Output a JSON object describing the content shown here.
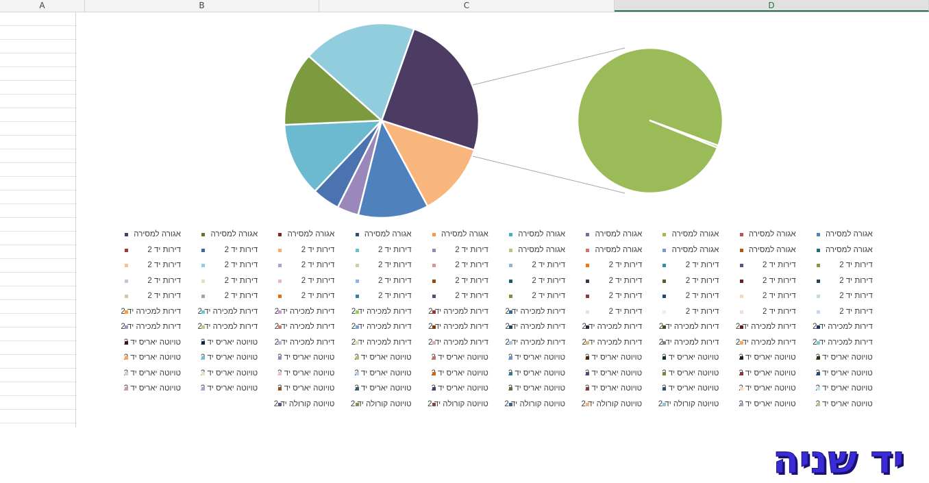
{
  "sheet": {
    "columns": [
      {
        "label": "A",
        "key": "a",
        "active": false
      },
      {
        "label": "B",
        "key": "b",
        "active": false
      },
      {
        "label": "C",
        "key": "c",
        "active": false
      },
      {
        "label": "D",
        "key": "d",
        "active": true
      }
    ]
  },
  "chart_data": {
    "type": "pie",
    "subtype": "pie-of-pie",
    "title": "",
    "main_pie": {
      "slices": [
        {
          "value": 24.0,
          "color": "#4c3b63"
        },
        {
          "value": 12.0,
          "color": "#f8b67c"
        },
        {
          "value": 11.5,
          "color": "#4f81bd"
        },
        {
          "value": 3.5,
          "color": "#9b88bb"
        },
        {
          "value": 4.5,
          "color": "#4a73b0"
        },
        {
          "value": 12.0,
          "color": "#6cbad0"
        },
        {
          "value": 12.0,
          "color": "#7b9b3e"
        },
        {
          "value": 18.5,
          "color": "#92cddd"
        }
      ]
    },
    "secondary_pie": {
      "slices": [
        {
          "value": 99.5,
          "color": "#9bbb59"
        },
        {
          "value": 0.5,
          "color": "#9bbb59"
        }
      ]
    },
    "legend": {
      "placement": "bottom",
      "columns": 10,
      "entries": [
        {
          "label": "אגורה למסירה",
          "color": "#4f81bd"
        },
        {
          "label": "אגורה למסירה",
          "color": "#c0504d"
        },
        {
          "label": "אגורה למסירה",
          "color": "#9bbb59"
        },
        {
          "label": "אגורה למסירה",
          "color": "#8064a2"
        },
        {
          "label": "אגורה למסירה",
          "color": "#4bacc6"
        },
        {
          "label": "אגורה למסירה",
          "color": "#f79646"
        },
        {
          "label": "אגורה למסירה",
          "color": "#2c4d75"
        },
        {
          "label": "אגורה למסירה",
          "color": "#772c2a"
        },
        {
          "label": "אגורה למסירה",
          "color": "#5f7530"
        },
        {
          "label": "אגורה למסירה",
          "color": "#4d3b62"
        },
        {
          "label": "אגורה למסירה",
          "color": "#276a7c"
        },
        {
          "label": "אגורה למסירה",
          "color": "#b65708"
        },
        {
          "label": "אגורה למסירה",
          "color": "#729aca"
        },
        {
          "label": "אגורה למסירה",
          "color": "#cd7371"
        },
        {
          "label": "אגורה למסירה",
          "color": "#afc97a"
        },
        {
          "label": "דירות יד 2",
          "color": "#9983b5"
        },
        {
          "label": "דירות יד 2",
          "color": "#6fbdd1"
        },
        {
          "label": "דירות יד 2",
          "color": "#f9ab6b"
        },
        {
          "label": "דירות יד 2",
          "color": "#3a679c"
        },
        {
          "label": "דירות יד 2",
          "color": "#9e3b38"
        },
        {
          "label": "דירות יד 2",
          "color": "#7e9c40"
        },
        {
          "label": "דירות יד 2",
          "color": "#664f82"
        },
        {
          "label": "דירות יד 2",
          "color": "#358ea6"
        },
        {
          "label": "דירות יד 2",
          "color": "#f3760d"
        },
        {
          "label": "דירות יד 2",
          "color": "#95b3d7"
        },
        {
          "label": "דירות יד 2",
          "color": "#d99694"
        },
        {
          "label": "דירות יד 2",
          "color": "#c3d69b"
        },
        {
          "label": "דירות יד 2",
          "color": "#b2a2c7"
        },
        {
          "label": "דירות יד 2",
          "color": "#92cddd"
        },
        {
          "label": "דירות יד 2",
          "color": "#fac090"
        },
        {
          "label": "דירות יד 2",
          "color": "#254061"
        },
        {
          "label": "דירות יד 2",
          "color": "#632523"
        },
        {
          "label": "דירות יד 2",
          "color": "#4f6228"
        },
        {
          "label": "דירות יד 2",
          "color": "#403151"
        },
        {
          "label": "דירות יד 2",
          "color": "#215968"
        },
        {
          "label": "דירות יד 2",
          "color": "#984807"
        },
        {
          "label": "דירות יד 2",
          "color": "#8eb4e3"
        },
        {
          "label": "דירות יד 2",
          "color": "#e6b9b8"
        },
        {
          "label": "דירות יד 2",
          "color": "#d7e4bd"
        },
        {
          "label": "דירות יד 2",
          "color": "#ccc1da"
        },
        {
          "label": "דירות יד 2",
          "color": "#b7dee8"
        },
        {
          "label": "דירות יד 2",
          "color": "#fcd5b5"
        },
        {
          "label": "דירות יד 2",
          "color": "#1f497d"
        },
        {
          "label": "דירות יד 2",
          "color": "#953735"
        },
        {
          "label": "דירות יד 2",
          "color": "#76923c"
        },
        {
          "label": "דירות יד 2",
          "color": "#5f497a"
        },
        {
          "label": "דירות יד 2",
          "color": "#31859c"
        },
        {
          "label": "דירות יד 2",
          "color": "#e46c0a"
        },
        {
          "label": "דירות יד 2",
          "color": "#a5a5a5"
        },
        {
          "label": "דירות יד 2",
          "color": "#d9c3a5"
        },
        {
          "label": "דירות יד 2",
          "color": "#c6d9f1"
        },
        {
          "label": "דירות יד 2",
          "color": "#f2dcdb"
        },
        {
          "label": "דירות יד 2",
          "color": "#ebf1de"
        },
        {
          "label": "דירות יד 2",
          "color": "#e6e0ec"
        },
        {
          "label": "דירות למכירה יד 2",
          "color": "#336699"
        },
        {
          "label": "דירות למכירה יד 2",
          "color": "#993333"
        },
        {
          "label": "דירות למכירה יד 2",
          "color": "#99cc66"
        },
        {
          "label": "דירות למכירה יד 2",
          "color": "#cc99cc"
        },
        {
          "label": "דירות למכירה יד 2",
          "color": "#66cccc"
        },
        {
          "label": "דירות למכירה יד 2",
          "color": "#ff9933"
        },
        {
          "label": "דירות למכירה יד 2",
          "color": "#1f3864"
        },
        {
          "label": "דירות למכירה יד 2",
          "color": "#5a1e1c"
        },
        {
          "label": "דירות למכירה יד 2",
          "color": "#3f4f1f"
        },
        {
          "label": "דירות למכירה יד 2",
          "color": "#342a44"
        },
        {
          "label": "דירות למכירה יד 2",
          "color": "#1b4a56"
        },
        {
          "label": "דירות למכירה יד 2",
          "color": "#7f3c06"
        },
        {
          "label": "דירות למכירה יד 2",
          "color": "#7aa3d6"
        },
        {
          "label": "דירות למכירה יד 2",
          "color": "#c77d7b"
        },
        {
          "label": "דירות למכירה יד 2",
          "color": "#b8cd8a"
        },
        {
          "label": "דירות למכירה יד 2",
          "color": "#a691be"
        },
        {
          "label": "דירות למכירה יד 2",
          "color": "#7fc5d7"
        },
        {
          "label": "דירות למכירה יד 2",
          "color": "#f8a55f"
        },
        {
          "label": "דירות למכירה יד 2",
          "color": "#7f7f7f"
        },
        {
          "label": "דירות למכירה יד 2",
          "color": "#d6b77a"
        },
        {
          "label": "דירות למכירה יד 2",
          "color": "#a9c4e6"
        },
        {
          "label": "דירות למכירה יד 2",
          "color": "#ddaaa9"
        },
        {
          "label": "דירות למכירה יד 2",
          "color": "#cfdfae"
        },
        {
          "label": "דירות למכירה יד 2",
          "color": "#bfb0d2"
        },
        {
          "label": "טויוטה יאריס יד 2",
          "color": "#0f243e"
        },
        {
          "label": "טויוטה יאריס יד 2",
          "color": "#3e1312"
        },
        {
          "label": "טויוטה יאריס יד 2",
          "color": "#2a3514"
        },
        {
          "label": "טויוטה יאריס יד 2",
          "color": "#231b2c"
        },
        {
          "label": "טויוטה יאריס יד 2",
          "color": "#122f37"
        },
        {
          "label": "טויוטה יאריס יד 2",
          "color": "#522504"
        },
        {
          "label": "טויוטה יאריס יד 2",
          "color": "#6a93c6"
        },
        {
          "label": "טויוטה יאריס יד 2",
          "color": "#c46e6c"
        },
        {
          "label": "טויוטה יאריס יד 2",
          "color": "#a8c271"
        },
        {
          "label": "טויוטה יאריס יד 2",
          "color": "#9b85b6"
        },
        {
          "label": "טויוטה יאריס יד 2",
          "color": "#74c0d2"
        },
        {
          "label": "טויוטה יאריס יד 2",
          "color": "#f7a45a"
        },
        {
          "label": "טויוטה יאריס יד 2",
          "color": "#264a78"
        },
        {
          "label": "טויוטה יאריס יד 2",
          "color": "#8a3331"
        },
        {
          "label": "טויוטה יאריס יד 2",
          "color": "#6c8a37"
        },
        {
          "label": "טויוטה יאריס יד 2",
          "color": "#584372"
        },
        {
          "label": "טויוטה יאריס יד 2",
          "color": "#2d7b90"
        },
        {
          "label": "טויוטה יאריס יד 2",
          "color": "#d26409"
        },
        {
          "label": "טויוטה יאריס יד 2",
          "color": "#b9cde5"
        },
        {
          "label": "טויוטה יאריס יד 2",
          "color": "#e8c4c3"
        },
        {
          "label": "טויוטה יאריס יד 2",
          "color": "#dbe7c6"
        },
        {
          "label": "טויוטה יאריס יד 2",
          "color": "#d3cadf"
        },
        {
          "label": "טויוטה יאריס יד 2",
          "color": "#c3e4ec"
        },
        {
          "label": "טויוטה יאריס יד 2",
          "color": "#fbd8bb"
        },
        {
          "label": "טויוטה יאריס יד 2",
          "color": "#344f73"
        },
        {
          "label": "טויוטה יאריס יד 2",
          "color": "#7a3e3c"
        },
        {
          "label": "טויוטה יאריס יד 2",
          "color": "#5c6e3a"
        },
        {
          "label": "טויוטה יאריס יד 2",
          "color": "#4c4060"
        },
        {
          "label": "טויוטה יאריס יד 2",
          "color": "#33656f"
        },
        {
          "label": "טויוטה יאריס יד 2",
          "color": "#8a5126"
        },
        {
          "label": "טויוטה יאריס יד 2",
          "color": "#a4a4c8"
        },
        {
          "label": "טויוטה יאריס יד 2",
          "color": "#c89aa8"
        },
        {
          "label": "טויוטה יאריס יד 2",
          "color": "#b5c98e"
        },
        {
          "label": "טויוטה יאריס יד 2",
          "color": "#a39ebf"
        },
        {
          "label": "טויוטה קורולה יד 2",
          "color": "#8ac6d6"
        },
        {
          "label": "טויוטה קורולה יד 2",
          "color": "#f3b27c"
        },
        {
          "label": "טויוטה קורולה יד 2",
          "color": "#3d5f8e"
        },
        {
          "label": "טויוטה קורולה יד 2",
          "color": "#874644"
        },
        {
          "label": "טויוטה קורולה יד 2",
          "color": "#799749"
        },
        {
          "label": "טויוטה קורולה יד 2",
          "color": "#635380"
        }
      ]
    }
  },
  "watermark": {
    "text": "יד שניה"
  }
}
